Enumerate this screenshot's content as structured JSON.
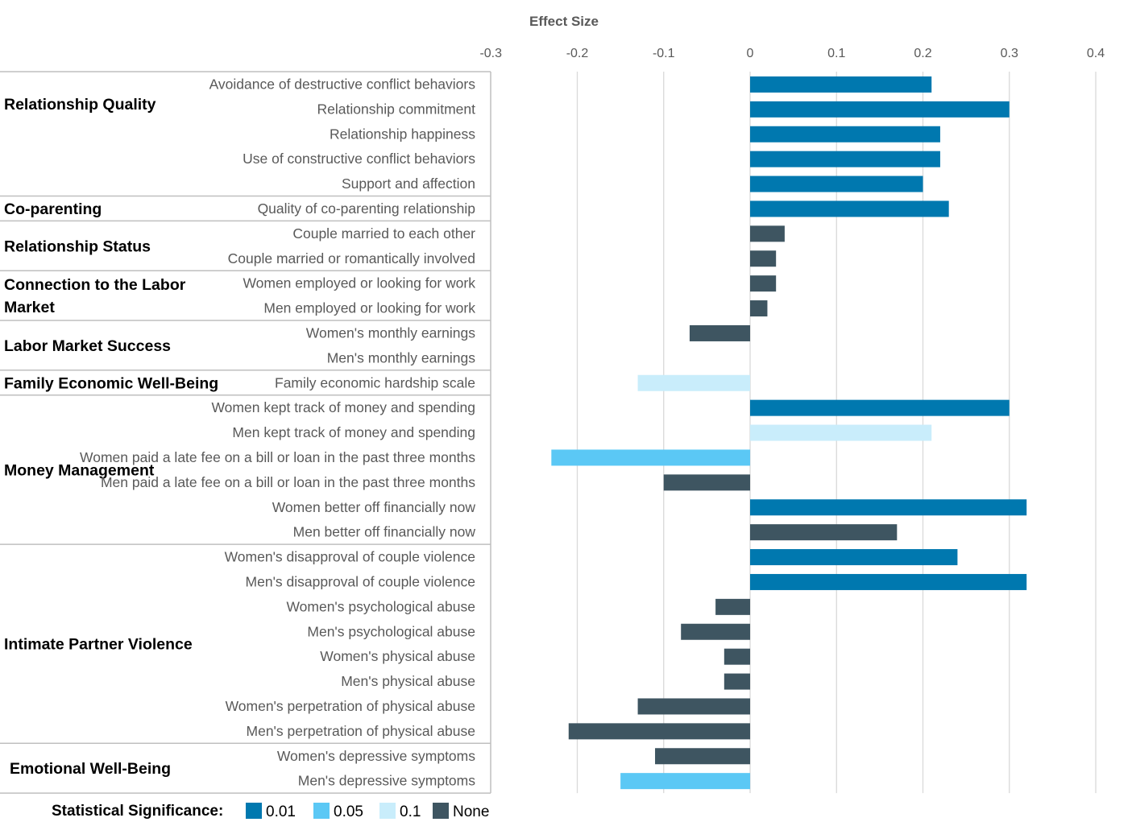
{
  "chart_data": {
    "type": "bar",
    "orientation": "horizontal",
    "title": "Effect Size",
    "xlim": [
      -0.3,
      0.4
    ],
    "xticks": [
      "-0.3",
      "-0.2",
      "-0.1",
      "0",
      "0.1",
      "0.2",
      "0.3",
      "0.4"
    ],
    "grid": true,
    "groups": [
      {
        "name": [
          "Relationship Quality"
        ],
        "rows": [
          {
            "label": "Avoidance of destructive conflict behaviors",
            "value": 0.21,
            "sig": "0.01"
          },
          {
            "label": "Relationship commitment",
            "value": 0.3,
            "sig": "0.01"
          },
          {
            "label": "Relationship happiness",
            "value": 0.22,
            "sig": "0.01"
          },
          {
            "label": "Use of constructive conflict behaviors",
            "value": 0.22,
            "sig": "0.01"
          },
          {
            "label": "Support and affection",
            "value": 0.2,
            "sig": "0.01"
          }
        ]
      },
      {
        "name": [
          "Co-parenting"
        ],
        "rows": [
          {
            "label": "Quality of co-parenting relationship",
            "value": 0.23,
            "sig": "0.01"
          }
        ]
      },
      {
        "name": [
          "Relationship Status"
        ],
        "rows": [
          {
            "label": "Couple married to each other",
            "value": 0.04,
            "sig": "None"
          },
          {
            "label": "Couple married or romantically involved",
            "value": 0.03,
            "sig": "None"
          }
        ]
      },
      {
        "name": [
          "Connection to the Labor",
          "Market"
        ],
        "rows": [
          {
            "label": "Women employed or looking for work",
            "value": 0.03,
            "sig": "None"
          },
          {
            "label": "Men employed or looking for work",
            "value": 0.02,
            "sig": "None"
          }
        ]
      },
      {
        "name": [
          "Labor Market Success"
        ],
        "rows": [
          {
            "label": "Women's monthly earnings",
            "value": -0.07,
            "sig": "None"
          },
          {
            "label": "Men's monthly earnings",
            "value": 0.0,
            "sig": "None"
          }
        ]
      },
      {
        "name": [
          "Family Economic Well-Being"
        ],
        "rows": [
          {
            "label": "Family economic hardship scale",
            "value": -0.13,
            "sig": "0.1"
          }
        ]
      },
      {
        "name": [
          "Money Management"
        ],
        "rows": [
          {
            "label": "Women kept track of money and spending",
            "value": 0.3,
            "sig": "0.01"
          },
          {
            "label": "Men kept track of money and spending",
            "value": 0.21,
            "sig": "0.1"
          },
          {
            "label": "Women paid a late fee on a bill or loan in the past three months",
            "value": -0.23,
            "sig": "0.05"
          },
          {
            "label": "Men paid a late fee on a bill or loan in the past three months",
            "value": -0.1,
            "sig": "None"
          },
          {
            "label": "Women better off financially now",
            "value": 0.32,
            "sig": "0.01"
          },
          {
            "label": "Men better off financially now",
            "value": 0.17,
            "sig": "None"
          }
        ]
      },
      {
        "name": [
          "Intimate Partner Violence"
        ],
        "rows": [
          {
            "label": "Women's disapproval of couple violence",
            "value": 0.24,
            "sig": "0.01"
          },
          {
            "label": "Men's disapproval of couple violence",
            "value": 0.32,
            "sig": "0.01"
          },
          {
            "label": "Women's psychological abuse",
            "value": -0.04,
            "sig": "None"
          },
          {
            "label": "Men's psychological abuse",
            "value": -0.08,
            "sig": "None"
          },
          {
            "label": "Women's physical abuse",
            "value": -0.03,
            "sig": "None"
          },
          {
            "label": "Men's physical abuse",
            "value": -0.03,
            "sig": "None"
          },
          {
            "label": "Women's perpetration of physical abuse",
            "value": -0.13,
            "sig": "None"
          },
          {
            "label": "Men's perpetration of physical abuse",
            "value": -0.21,
            "sig": "None"
          }
        ]
      },
      {
        "name": [
          "Emotional Well-Being"
        ],
        "rows": [
          {
            "label": "Women's depressive symptoms",
            "value": -0.11,
            "sig": "None"
          },
          {
            "label": "Men's depressive symptoms",
            "value": -0.15,
            "sig": "0.05"
          }
        ]
      }
    ],
    "legend": {
      "title": "Statistical Significance:",
      "placement": "bottom",
      "items": [
        {
          "label": "0.01",
          "key": "0.01",
          "color": "#0078AF"
        },
        {
          "label": "0.05",
          "key": "0.05",
          "color": "#5BC8F5"
        },
        {
          "label": "0.1",
          "key": "0.1",
          "color": "#C9EDFB"
        },
        {
          "label": "None",
          "key": "None",
          "color": "#3E5561"
        }
      ]
    }
  }
}
